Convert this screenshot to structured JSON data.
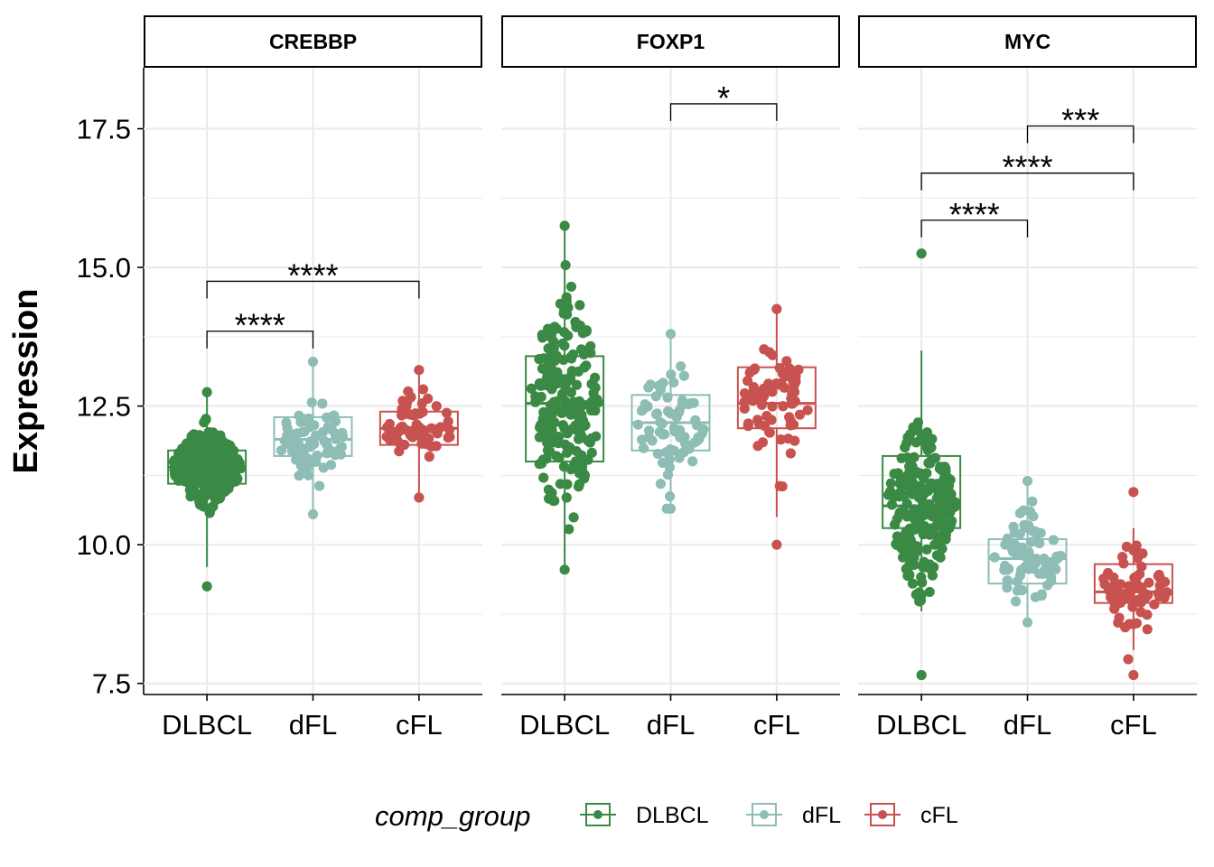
{
  "colors": {
    "DLBCL": "#3a8a45",
    "dFL": "#8dbdb4",
    "cFL": "#c8524f",
    "grid": "#ebebeb",
    "axis": "#000000"
  },
  "chart_data": {
    "type": "box",
    "ylabel": "Expression",
    "ylim": [
      7.3,
      18.6
    ],
    "y_ticks": [
      "7.5",
      "10.0",
      "12.5",
      "15.0",
      "17.5"
    ],
    "y_tick_values": [
      7.5,
      10.0,
      12.5,
      15.0,
      17.5
    ],
    "categories": [
      "DLBCL",
      "dFL",
      "cFL"
    ],
    "grid": true,
    "legend": {
      "title": "comp_group",
      "position": "bottom",
      "entries": [
        "DLBCL",
        "dFL",
        "cFL"
      ]
    },
    "panels": [
      {
        "title": "CREBBP",
        "boxes": [
          {
            "group": "DLBCL",
            "q1": 11.1,
            "median": 11.4,
            "q3": 11.7,
            "whisker_low": 9.6,
            "whisker_high": 12.7,
            "min": 9.25,
            "max": 12.75,
            "n": 320
          },
          {
            "group": "dFL",
            "q1": 11.6,
            "median": 11.9,
            "q3": 12.3,
            "whisker_low": 10.6,
            "whisker_high": 13.3,
            "min": 10.55,
            "max": 13.3,
            "n": 70
          },
          {
            "group": "cFL",
            "q1": 11.8,
            "median": 12.1,
            "q3": 12.4,
            "whisker_low": 10.85,
            "whisker_high": 13.1,
            "min": 10.85,
            "max": 13.15,
            "n": 70
          }
        ],
        "significance": [
          {
            "from": "DLBCL",
            "to": "dFL",
            "y": 13.85,
            "label": "****"
          },
          {
            "from": "DLBCL",
            "to": "cFL",
            "y": 14.75,
            "label": "****"
          }
        ]
      },
      {
        "title": "FOXP1",
        "boxes": [
          {
            "group": "DLBCL",
            "q1": 11.5,
            "median": 12.55,
            "q3": 13.4,
            "whisker_low": 9.6,
            "whisker_high": 15.7,
            "min": 9.55,
            "max": 15.75,
            "n": 200
          },
          {
            "group": "dFL",
            "q1": 11.7,
            "median": 12.2,
            "q3": 12.7,
            "whisker_low": 10.65,
            "whisker_high": 13.8,
            "min": 10.65,
            "max": 13.8,
            "n": 70
          },
          {
            "group": "cFL",
            "q1": 12.1,
            "median": 12.55,
            "q3": 13.2,
            "whisker_low": 10.5,
            "whisker_high": 14.2,
            "min": 10.0,
            "max": 14.25,
            "n": 70
          }
        ],
        "significance": [
          {
            "from": "dFL",
            "to": "cFL",
            "y": 17.95,
            "label": "*"
          }
        ]
      },
      {
        "title": "MYC",
        "boxes": [
          {
            "group": "DLBCL",
            "q1": 10.3,
            "median": 10.7,
            "q3": 11.6,
            "whisker_low": 8.8,
            "whisker_high": 13.5,
            "min": 7.65,
            "max": 15.25,
            "n": 220
          },
          {
            "group": "dFL",
            "q1": 9.3,
            "median": 9.75,
            "q3": 10.1,
            "whisker_low": 8.6,
            "whisker_high": 11.1,
            "min": 8.6,
            "max": 11.15,
            "n": 70
          },
          {
            "group": "cFL",
            "q1": 8.95,
            "median": 9.15,
            "q3": 9.65,
            "whisker_low": 8.1,
            "whisker_high": 10.3,
            "min": 7.65,
            "max": 10.95,
            "n": 70
          }
        ],
        "significance": [
          {
            "from": "DLBCL",
            "to": "dFL",
            "y": 15.85,
            "label": "****"
          },
          {
            "from": "DLBCL",
            "to": "cFL",
            "y": 16.7,
            "label": "****"
          },
          {
            "from": "dFL",
            "to": "cFL",
            "y": 17.55,
            "label": "***"
          }
        ]
      }
    ]
  }
}
